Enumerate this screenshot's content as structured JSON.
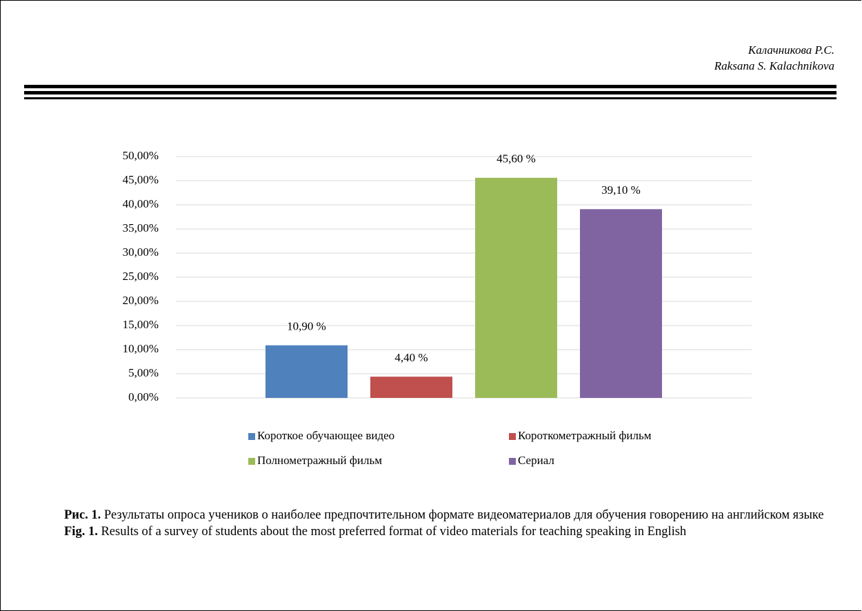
{
  "header": {
    "author_ru": "Калачникова Р.С.",
    "author_en": "Raksana S. Kalachnikova"
  },
  "chart_data": {
    "type": "bar",
    "categories": [
      null
    ],
    "series": [
      {
        "name": "Короткое обучающее видео",
        "color": "#4f81bd",
        "values": [
          10.9
        ],
        "value_labels": [
          "10,90 %"
        ]
      },
      {
        "name": "Короткометражный фильм",
        "color": "#c0504d",
        "values": [
          4.4
        ],
        "value_labels": [
          "4,40 %"
        ]
      },
      {
        "name": "Полнометражный фильм",
        "color": "#9bbb59",
        "values": [
          45.6
        ],
        "value_labels": [
          "45,60 %"
        ]
      },
      {
        "name": "Сериал",
        "color": "#8064a2",
        "values": [
          39.1
        ],
        "value_labels": [
          "39,10 %"
        ]
      }
    ],
    "ylim": [
      0,
      50
    ],
    "yticks": [
      {
        "value": 0,
        "label": "0,00%"
      },
      {
        "value": 5,
        "label": "5,00%"
      },
      {
        "value": 10,
        "label": "10,00%"
      },
      {
        "value": 15,
        "label": "15,00%"
      },
      {
        "value": 20,
        "label": "20,00%"
      },
      {
        "value": 25,
        "label": "25,00%"
      },
      {
        "value": 30,
        "label": "30,00%"
      },
      {
        "value": 35,
        "label": "35,00%"
      },
      {
        "value": 40,
        "label": "40,00%"
      },
      {
        "value": 45,
        "label": "45,00%"
      },
      {
        "value": 50,
        "label": "50,00%"
      }
    ],
    "grid": true,
    "legend": "bottom"
  },
  "caption": {
    "ru_label": "Рис. 1.",
    "ru_text": "Результаты опроса учеников о наиболее предпочтительном формате видеоматериалов для обучения говорению на английском языке",
    "en_label": "Fig. 1.",
    "en_text": "Results of a survey of students about the most preferred format of video materials for teaching speaking in English"
  }
}
